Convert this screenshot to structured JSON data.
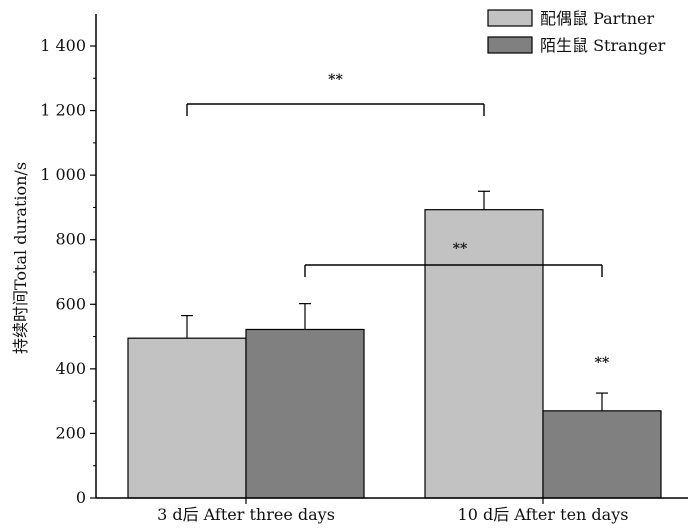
{
  "chart_data": {
    "type": "bar",
    "categories": [
      "3 d后 After three days",
      "10 d后 After ten days"
    ],
    "series": [
      {
        "name": "配偶鼠 Partner",
        "color": "#c2c2c2",
        "values": [
          495,
          893
        ],
        "errors": [
          70,
          57
        ]
      },
      {
        "name": "陌生鼠 Stranger",
        "color": "#808080",
        "values": [
          522,
          270
        ],
        "errors": [
          80,
          55
        ]
      }
    ],
    "ylabel": "持续时间Total duration/s",
    "xlabel": "",
    "ylim": [
      0,
      1500
    ],
    "yticks": [
      0,
      200,
      400,
      600,
      800,
      1000,
      1200,
      1400
    ],
    "ytick_labels": [
      "0",
      "200",
      "400",
      "600",
      "800",
      "1 000",
      "1 200",
      "1 400"
    ],
    "legend_position": "top-right",
    "grid": false,
    "annotations": [
      {
        "text": "**",
        "type": "bracket",
        "from": "Partner 3 d",
        "to": "Partner 10 d"
      },
      {
        "text": "**",
        "type": "bracket",
        "from": "Stranger 3 d",
        "to": "Stranger 10 d"
      },
      {
        "text": "**",
        "type": "label",
        "over": "Stranger 10 d"
      }
    ]
  }
}
